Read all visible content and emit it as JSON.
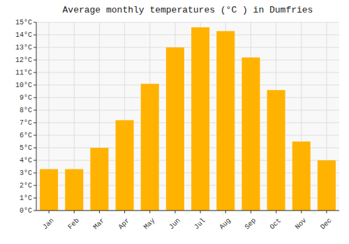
{
  "chart_data": {
    "type": "bar",
    "title": "Average monthly temperatures (°C ) in Dumfries",
    "categories": [
      "Jan",
      "Feb",
      "Mar",
      "Apr",
      "May",
      "Jun",
      "Jul",
      "Aug",
      "Sep",
      "Oct",
      "Nov",
      "Dec"
    ],
    "values": [
      3.3,
      3.3,
      5.0,
      7.2,
      10.1,
      13.0,
      14.6,
      14.3,
      12.2,
      9.6,
      5.5,
      4.0
    ],
    "color": "#FFB300",
    "ylim": [
      0,
      15
    ],
    "yticks": [
      {
        "value": 0,
        "label": "0°C"
      },
      {
        "value": 1,
        "label": "1°C"
      },
      {
        "value": 2,
        "label": "2°C"
      },
      {
        "value": 3,
        "label": "3°C"
      },
      {
        "value": 4,
        "label": "4°C"
      },
      {
        "value": 5,
        "label": "5°C"
      },
      {
        "value": 6,
        "label": "6°C"
      },
      {
        "value": 7,
        "label": "7°C"
      },
      {
        "value": 8,
        "label": "8°C"
      },
      {
        "value": 9,
        "label": "9°C"
      },
      {
        "value": 10,
        "label": "10°C"
      },
      {
        "value": 11,
        "label": "11°C"
      },
      {
        "value": 12,
        "label": "12°C"
      },
      {
        "value": 13,
        "label": "13°C"
      },
      {
        "value": 14,
        "label": "14°C"
      },
      {
        "value": 15,
        "label": "15°C"
      }
    ],
    "grid": true
  }
}
